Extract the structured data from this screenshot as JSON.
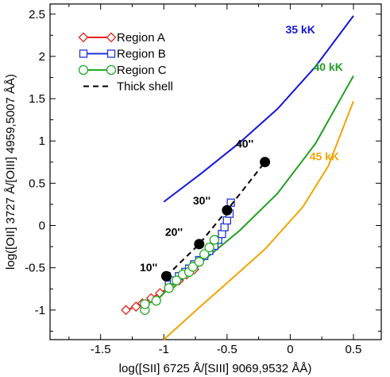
{
  "chart_data": {
    "type": "line",
    "xlabel": "log([SII] 6725 Å/[SIII] 9069,9532 ÅÅ)",
    "ylabel": "log([OII] 3727 Å/[OIII] 4959,5007 ÅÅ)",
    "xlim": [
      -1.9,
      0.72
    ],
    "ylim": [
      -1.35,
      2.62
    ],
    "xticks": [
      -1.5,
      -1,
      -0.5,
      0,
      0.5
    ],
    "xtick_labels": [
      "-1.5",
      "-1",
      "-0.5",
      "0",
      "0.5"
    ],
    "yticks": [
      -1,
      -0.5,
      0,
      0.5,
      1,
      1.5,
      2,
      2.5
    ],
    "ytick_labels": [
      "-1",
      "-0.5",
      "0",
      "0.5",
      "1",
      "1.5",
      "2",
      "2.5"
    ],
    "grid": false,
    "legend_placement": "top-left",
    "series": [
      {
        "name": "Region A",
        "color": "#e8231f",
        "marker": "diamond",
        "x": [
          -1.3,
          -1.22,
          -1.17,
          -1.1,
          -1.03,
          -0.96,
          -0.88,
          -0.82,
          -0.76
        ],
        "y": [
          -1.0,
          -0.96,
          -0.92,
          -0.86,
          -0.8,
          -0.74,
          -0.65,
          -0.58,
          -0.52
        ]
      },
      {
        "name": "Region B",
        "color": "#2233dd",
        "marker": "square",
        "x": [
          -0.96,
          -0.92,
          -0.88,
          -0.83,
          -0.8,
          -0.76,
          -0.72,
          -0.68,
          -0.64,
          -0.6,
          -0.57,
          -0.54,
          -0.52,
          -0.5,
          -0.48,
          -0.47
        ],
        "y": [
          -0.7,
          -0.65,
          -0.6,
          -0.55,
          -0.51,
          -0.46,
          -0.41,
          -0.36,
          -0.3,
          -0.24,
          -0.17,
          -0.1,
          -0.02,
          0.06,
          0.14,
          0.27
        ]
      },
      {
        "name": "Region C",
        "color": "#22aa22",
        "marker": "circle",
        "x": [
          -1.15,
          -1.15,
          -1.06,
          -0.96,
          -0.9,
          -0.85,
          -0.8,
          -0.77,
          -0.72,
          -0.68,
          -0.64,
          -0.6
        ],
        "y": [
          -1.0,
          -0.93,
          -0.89,
          -0.74,
          -0.65,
          -0.58,
          -0.55,
          -0.49,
          -0.43,
          -0.34,
          -0.26,
          -0.17
        ]
      },
      {
        "name": "Thick shell",
        "color": "#000000",
        "marker": "none",
        "dashed": true,
        "x": [
          -0.98,
          -0.72,
          -0.5,
          -0.2
        ],
        "y": [
          -0.6,
          -0.22,
          0.18,
          0.75
        ]
      }
    ],
    "thick_shell_points": {
      "x": [
        -0.98,
        -0.72,
        -0.5,
        -0.2
      ],
      "y": [
        -0.6,
        -0.22,
        0.18,
        0.75
      ],
      "labels": [
        "10''",
        "20''",
        "30''",
        "40''"
      ],
      "label_x": [
        -1.12,
        -0.92,
        -0.7,
        -0.36
      ],
      "label_y": [
        -0.54,
        -0.12,
        0.25,
        0.92
      ]
    },
    "model_curves": [
      {
        "label": "35 kK",
        "color": "#1515dd",
        "x": [
          -1.0,
          -0.7,
          -0.4,
          -0.1,
          0.2,
          0.5
        ],
        "y": [
          0.28,
          0.62,
          0.98,
          1.38,
          1.88,
          2.48
        ],
        "label_x": 0.08,
        "label_y": 2.27
      },
      {
        "label": "40 kK",
        "color": "#22a022",
        "x": [
          -0.95,
          -0.7,
          -0.4,
          -0.1,
          0.2,
          0.5
        ],
        "y": [
          -0.77,
          -0.43,
          -0.06,
          0.38,
          0.97,
          1.77
        ],
        "label_x": 0.3,
        "label_y": 1.83
      },
      {
        "label": "45 kK",
        "color": "#f2a500",
        "x": [
          -1.0,
          -0.75,
          -0.5,
          -0.2,
          0.1,
          0.3,
          0.5
        ],
        "y": [
          -1.35,
          -1.01,
          -0.68,
          -0.28,
          0.22,
          0.7,
          1.47
        ],
        "label_x": 0.27,
        "label_y": 0.77
      }
    ]
  }
}
